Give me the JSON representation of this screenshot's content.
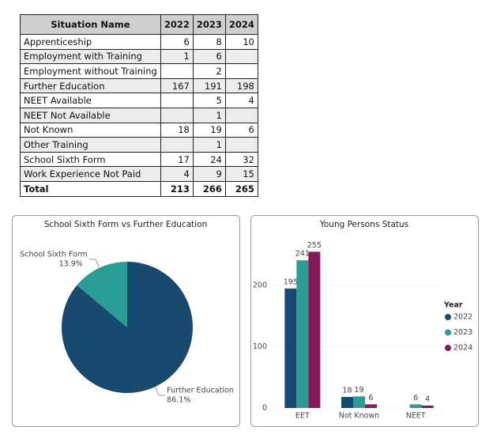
{
  "table": {
    "header": [
      "Situation Name",
      "2022",
      "2023",
      "2024"
    ],
    "rows": [
      [
        "Apprenticeship",
        6,
        8,
        10
      ],
      [
        "Employment with Training",
        1,
        6,
        null
      ],
      [
        "Employment without Training",
        null,
        2,
        null
      ],
      [
        "Further Education",
        167,
        191,
        198
      ],
      [
        "NEET Available",
        null,
        5,
        4
      ],
      [
        "NEET Not Available",
        null,
        1,
        null
      ],
      [
        "Not Known",
        18,
        19,
        6
      ],
      [
        "Other Training",
        null,
        1,
        null
      ],
      [
        "School Sixth Form",
        17,
        24,
        32
      ],
      [
        "Work Experience Not Paid",
        4,
        9,
        15
      ]
    ],
    "total": [
      "Total",
      213,
      266,
      265
    ]
  },
  "chart_data": [
    {
      "type": "pie",
      "title": "School Sixth Form vs Further Education",
      "categories": [
        "Further Education",
        "School Sixth Form"
      ],
      "values": [
        86.1,
        13.9
      ],
      "value_labels": [
        "86.1%",
        "13.9%"
      ],
      "colors": [
        "#184a6f",
        "#2a9d94"
      ]
    },
    {
      "type": "bar",
      "title": "Young Persons Status",
      "categories": [
        "EET",
        "Not Known",
        "NEET"
      ],
      "series": [
        {
          "name": "2022",
          "color": "#184a6f",
          "values": [
            195,
            18,
            null
          ]
        },
        {
          "name": "2023",
          "color": "#2a9d94",
          "values": [
            241,
            19,
            6
          ]
        },
        {
          "name": "2024",
          "color": "#87195a",
          "values": [
            255,
            6,
            4
          ]
        }
      ],
      "legend_title": "Year",
      "ylim": [
        0,
        280
      ],
      "yticks": [
        0,
        100,
        200
      ],
      "grid": true
    }
  ]
}
